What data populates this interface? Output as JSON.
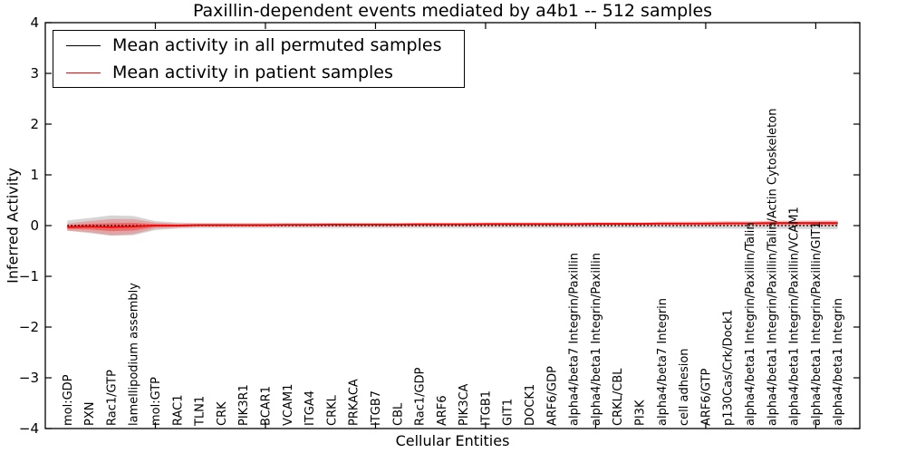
{
  "figure": {
    "title": "Paxillin-dependent events mediated by a4b1 -- 512 samples",
    "xlabel": "Cellular Entities",
    "ylabel": "Inferred Activity"
  },
  "legend": {
    "items": [
      {
        "label": "Mean activity in all permuted samples",
        "color": "#000000"
      },
      {
        "label": "Mean activity in patient samples",
        "color": "#ff0000"
      }
    ]
  },
  "chart_data": {
    "type": "line",
    "title": "Paxillin-dependent events mediated by a4b1 -- 512 samples",
    "xlabel": "Cellular Entities",
    "ylabel": "Inferred Activity",
    "ylim": [
      -4,
      4
    ],
    "xlim": [
      0,
      37
    ],
    "yticks": [
      -4,
      -3,
      -2,
      -1,
      0,
      1,
      2,
      3,
      4
    ],
    "xticks": [
      5,
      10,
      15,
      20,
      25,
      30,
      35
    ],
    "grid": false,
    "legend_position": "upper left",
    "categories": [
      "mol:GDP",
      "PXN",
      "Rac1/GTP",
      "lamellipodium assembly",
      "mol:GTP",
      "RAC1",
      "TLN1",
      "CRK",
      "PIK3R1",
      "BCAR1",
      "VCAM1",
      "ITGA4",
      "CRKL",
      "PRKACA",
      "ITGB7",
      "CBL",
      "Rac1/GDP",
      "ARF6",
      "PIK3CA",
      "ITGB1",
      "GIT1",
      "DOCK1",
      "ARF6/GDP",
      "alpha4/beta7 Integrin/Paxillin",
      "alpha4/beta1 Integrin/Paxillin",
      "CRKL/CBL",
      "PI3K",
      "alpha4/beta7 Integrin",
      "cell adhesion",
      "ARF6/GTP",
      "p130Cas/Crk/Dock1",
      "alpha4/beta1 Integrin/Paxillin/Talin",
      "alpha4/beta1 Integrin/Paxillin/Talin/Actin Cytoskeleton",
      "alpha4/beta1 Integrin/Paxillin/VCAM1",
      "alpha4/beta1 Integrin/Paxillin/GIT1",
      "alpha4/beta1 Integrin"
    ],
    "series": [
      {
        "name": "Mean activity in all permuted samples",
        "color": "#000000",
        "style": "dotted",
        "values": [
          0,
          0,
          0,
          0,
          0,
          0,
          0,
          0,
          0,
          0,
          0,
          0,
          0,
          0,
          0,
          0,
          0,
          0,
          0,
          0,
          0,
          0,
          0,
          0,
          0,
          0,
          0,
          0,
          0,
          0,
          0,
          0,
          0,
          0,
          0,
          0
        ]
      },
      {
        "name": "Mean activity in patient samples",
        "color": "#ff0000",
        "style": "solid",
        "values": [
          -0.03,
          -0.02,
          -0.03,
          -0.02,
          0,
          0,
          0.01,
          0.01,
          0.01,
          0.01,
          0.015,
          0.015,
          0.02,
          0.02,
          0.02,
          0.02,
          0.025,
          0.025,
          0.025,
          0.03,
          0.03,
          0.03,
          0.03,
          0.03,
          0.035,
          0.035,
          0.035,
          0.04,
          0.04,
          0.04,
          0.045,
          0.045,
          0.05,
          0.05,
          0.05,
          0.05
        ]
      }
    ],
    "bands": [
      {
        "name": "permuted-range",
        "color": "#888888",
        "alpha": 0.35,
        "center_series": 0,
        "half_widths": [
          0.1,
          0.15,
          0.2,
          0.19,
          0.09,
          0.06,
          0.05,
          0.05,
          0.05,
          0.05,
          0.05,
          0.05,
          0.05,
          0.05,
          0.05,
          0.05,
          0.05,
          0.05,
          0.05,
          0.05,
          0.05,
          0.05,
          0.05,
          0.05,
          0.05,
          0.05,
          0.05,
          0.05,
          0.055,
          0.055,
          0.06,
          0.06,
          0.065,
          0.065,
          0.07,
          0.07
        ]
      },
      {
        "name": "patient-range-outer",
        "color": "#ff0000",
        "alpha": 0.22,
        "center_series": 1,
        "half_widths": [
          0.07,
          0.11,
          0.16,
          0.15,
          0.06,
          0.04,
          0.03,
          0.03,
          0.03,
          0.03,
          0.03,
          0.03,
          0.03,
          0.03,
          0.03,
          0.03,
          0.03,
          0.03,
          0.03,
          0.03,
          0.03,
          0.03,
          0.03,
          0.03,
          0.03,
          0.03,
          0.03,
          0.035,
          0.035,
          0.04,
          0.04,
          0.04,
          0.045,
          0.045,
          0.05,
          0.05
        ]
      },
      {
        "name": "patient-range-inner",
        "color": "#ff0000",
        "alpha": 0.35,
        "center_series": 1,
        "half_widths": [
          0.035,
          0.055,
          0.08,
          0.075,
          0.03,
          0.02,
          0.015,
          0.015,
          0.015,
          0.015,
          0.015,
          0.015,
          0.015,
          0.015,
          0.015,
          0.015,
          0.015,
          0.015,
          0.015,
          0.015,
          0.015,
          0.015,
          0.015,
          0.015,
          0.015,
          0.015,
          0.015,
          0.018,
          0.018,
          0.02,
          0.02,
          0.02,
          0.022,
          0.022,
          0.025,
          0.025
        ]
      }
    ]
  }
}
